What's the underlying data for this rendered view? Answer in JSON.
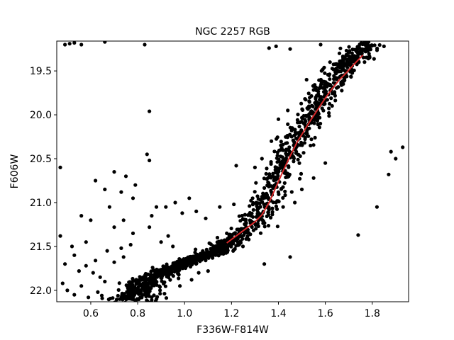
{
  "chart_data": {
    "type": "scatter",
    "title": "NGC 2257 RGB",
    "xlabel": "F336W-F814W",
    "ylabel": "F606W",
    "xlim": [
      0.455,
      1.955
    ],
    "ylim": [
      22.13,
      19.16
    ],
    "y_inverted": true,
    "grid": false,
    "x_ticks": [
      0.6,
      0.8,
      1.0,
      1.2,
      1.4,
      1.6,
      1.8
    ],
    "x_tick_labels": [
      "0.6",
      "0.8",
      "1.0",
      "1.2",
      "1.4",
      "1.6",
      "1.8"
    ],
    "y_ticks": [
      19.5,
      20.0,
      20.5,
      21.0,
      21.5,
      22.0
    ],
    "y_tick_labels": [
      "19.5",
      "20.0",
      "20.5",
      "21.0",
      "21.5",
      "22.0"
    ],
    "colors": {
      "points": "#000000",
      "fit_line": "#d62728"
    },
    "series": [
      {
        "kind": "points",
        "sequence": [
          [
            1.78,
            19.18
          ],
          [
            1.76,
            19.24
          ],
          [
            1.74,
            19.3
          ],
          [
            1.72,
            19.35
          ],
          [
            1.7,
            19.4
          ],
          [
            1.68,
            19.45
          ],
          [
            1.66,
            19.52
          ],
          [
            1.64,
            19.6
          ],
          [
            1.62,
            19.68
          ],
          [
            1.6,
            19.75
          ],
          [
            1.58,
            19.83
          ],
          [
            1.56,
            19.9
          ],
          [
            1.54,
            20.0
          ],
          [
            1.52,
            20.08
          ],
          [
            1.5,
            20.17
          ],
          [
            1.48,
            20.26
          ],
          [
            1.46,
            20.36
          ],
          [
            1.44,
            20.45
          ],
          [
            1.42,
            20.56
          ],
          [
            1.4,
            20.67
          ],
          [
            1.38,
            20.78
          ],
          [
            1.36,
            20.9
          ],
          [
            1.34,
            21.02
          ],
          [
            1.32,
            21.12
          ],
          [
            1.3,
            21.2
          ],
          [
            1.27,
            21.27
          ],
          [
            1.24,
            21.35
          ],
          [
            1.2,
            21.44
          ],
          [
            1.16,
            21.52
          ],
          [
            1.12,
            21.57
          ],
          [
            1.08,
            21.61
          ],
          [
            1.04,
            21.65
          ],
          [
            1.0,
            21.69
          ],
          [
            0.96,
            21.73
          ],
          [
            0.92,
            21.78
          ],
          [
            0.88,
            21.83
          ],
          [
            0.84,
            21.9
          ],
          [
            0.81,
            21.97
          ],
          [
            0.79,
            22.05
          ],
          [
            0.77,
            22.13
          ]
        ],
        "spread": [
          0.035,
          0.035,
          0.035,
          0.035,
          0.035,
          0.035,
          0.035,
          0.035,
          0.035,
          0.035,
          0.035,
          0.035,
          0.035,
          0.035,
          0.035,
          0.035,
          0.035,
          0.035,
          0.035,
          0.035,
          0.035,
          0.035,
          0.035,
          0.035,
          0.035,
          0.03,
          0.03,
          0.03,
          0.03,
          0.025,
          0.025,
          0.025,
          0.025,
          0.03,
          0.035,
          0.04,
          0.045,
          0.05,
          0.06,
          0.07
        ],
        "scattered": [
          [
            0.49,
            19.2
          ],
          [
            0.51,
            19.19
          ],
          [
            0.53,
            19.18
          ],
          [
            0.56,
            19.2
          ],
          [
            0.66,
            19.17
          ],
          [
            0.83,
            19.2
          ],
          [
            1.36,
            19.24
          ],
          [
            1.39,
            19.22
          ],
          [
            1.45,
            19.25
          ],
          [
            1.58,
            19.2
          ],
          [
            1.85,
            19.22
          ],
          [
            1.93,
            20.37
          ],
          [
            1.88,
            20.42
          ],
          [
            1.9,
            20.5
          ],
          [
            1.87,
            20.68
          ],
          [
            1.74,
            21.37
          ],
          [
            1.82,
            21.05
          ],
          [
            0.85,
            19.96
          ],
          [
            0.84,
            20.45
          ],
          [
            0.85,
            20.52
          ],
          [
            0.47,
            20.6
          ],
          [
            0.62,
            20.75
          ],
          [
            0.7,
            20.65
          ],
          [
            0.66,
            20.85
          ],
          [
            0.73,
            20.88
          ],
          [
            0.79,
            20.8
          ],
          [
            0.75,
            20.7
          ],
          [
            0.78,
            20.95
          ],
          [
            0.56,
            21.15
          ],
          [
            0.6,
            21.2
          ],
          [
            0.74,
            21.2
          ],
          [
            0.7,
            21.28
          ],
          [
            0.78,
            21.35
          ],
          [
            0.85,
            21.28
          ],
          [
            0.88,
            21.05
          ],
          [
            0.86,
            21.15
          ],
          [
            0.93,
            21.38
          ],
          [
            0.92,
            21.05
          ],
          [
            0.99,
            21.12
          ],
          [
            1.05,
            21.1
          ],
          [
            1.09,
            21.18
          ],
          [
            1.21,
            21.02
          ],
          [
            1.25,
            21.3
          ],
          [
            1.18,
            21.35
          ],
          [
            1.14,
            21.4
          ],
          [
            1.29,
            20.95
          ],
          [
            1.31,
            21.15
          ],
          [
            0.58,
            21.45
          ],
          [
            0.53,
            21.6
          ],
          [
            0.49,
            21.7
          ],
          [
            0.55,
            21.78
          ],
          [
            0.62,
            21.66
          ],
          [
            0.67,
            21.55
          ],
          [
            0.7,
            21.68
          ],
          [
            0.73,
            21.52
          ],
          [
            0.74,
            21.62
          ],
          [
            0.77,
            21.48
          ],
          [
            0.48,
            21.92
          ],
          [
            0.5,
            22.0
          ],
          [
            0.53,
            22.05
          ],
          [
            0.56,
            21.95
          ],
          [
            0.59,
            22.08
          ],
          [
            0.63,
            22.02
          ],
          [
            0.66,
            21.9
          ],
          [
            1.03,
            21.88
          ],
          [
            1.06,
            21.8
          ],
          [
            0.98,
            21.95
          ],
          [
            1.1,
            21.78
          ],
          [
            1.34,
            21.7
          ],
          [
            1.45,
            21.62
          ],
          [
            1.22,
            20.58
          ],
          [
            1.15,
            21.05
          ],
          [
            1.02,
            20.95
          ],
          [
            0.96,
            21.0
          ],
          [
            0.68,
            21.05
          ],
          [
            1.44,
            19.95
          ],
          [
            1.37,
            20.3
          ],
          [
            1.33,
            20.5
          ],
          [
            1.3,
            20.6
          ],
          [
            1.4,
            20.05
          ],
          [
            1.52,
            19.6
          ],
          [
            1.62,
            19.4
          ],
          [
            1.66,
            19.3
          ],
          [
            0.64,
            21.85
          ],
          [
            0.61,
            21.8
          ],
          [
            0.58,
            21.72
          ],
          [
            0.52,
            21.5
          ],
          [
            0.47,
            21.38
          ],
          [
            0.9,
            21.45
          ],
          [
            0.95,
            21.5
          ],
          [
            1.42,
            21.05
          ],
          [
            1.47,
            21.0
          ],
          [
            1.5,
            20.85
          ],
          [
            1.55,
            20.72
          ],
          [
            1.6,
            20.55
          ]
        ]
      },
      {
        "kind": "line",
        "x": [
          1.18,
          1.22,
          1.26,
          1.3,
          1.33,
          1.36,
          1.39,
          1.42,
          1.45,
          1.48,
          1.51,
          1.54,
          1.57,
          1.6,
          1.63,
          1.66,
          1.69,
          1.72,
          1.76
        ],
        "y": [
          21.46,
          21.38,
          21.3,
          21.22,
          21.14,
          21.0,
          20.82,
          20.64,
          20.47,
          20.31,
          20.18,
          20.05,
          19.93,
          19.81,
          19.7,
          19.6,
          19.52,
          19.43,
          19.32
        ]
      }
    ]
  }
}
